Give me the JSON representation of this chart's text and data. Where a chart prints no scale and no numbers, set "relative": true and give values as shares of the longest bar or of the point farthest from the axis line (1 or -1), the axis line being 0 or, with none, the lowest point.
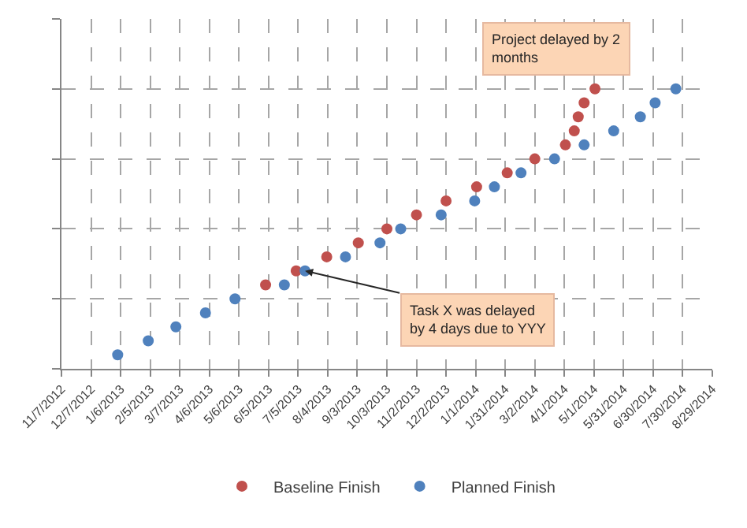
{
  "chart_data": {
    "type": "scatter",
    "relative": true,
    "tick_labels": "x",
    "grid": true,
    "legend": "bottom",
    "marker": "circle",
    "xlim": [
      "2012-11-07",
      "2014-08-29"
    ],
    "xticks": [
      {
        "value": "2012-11-07",
        "label": "11/7/2012"
      },
      {
        "value": "2012-12-07",
        "label": "12/7/2012"
      },
      {
        "value": "2013-01-06",
        "label": "1/6/2013"
      },
      {
        "value": "2013-02-05",
        "label": "2/5/2013"
      },
      {
        "value": "2013-03-07",
        "label": "3/7/2013"
      },
      {
        "value": "2013-04-06",
        "label": "4/6/2013"
      },
      {
        "value": "2013-05-06",
        "label": "5/6/2013"
      },
      {
        "value": "2013-06-05",
        "label": "6/5/2013"
      },
      {
        "value": "2013-07-05",
        "label": "7/5/2013"
      },
      {
        "value": "2013-08-04",
        "label": "8/4/2013"
      },
      {
        "value": "2013-09-03",
        "label": "9/3/2013"
      },
      {
        "value": "2013-10-03",
        "label": "10/3/2013"
      },
      {
        "value": "2013-11-02",
        "label": "11/2/2013"
      },
      {
        "value": "2013-12-02",
        "label": "12/2/2013"
      },
      {
        "value": "2014-01-01",
        "label": "1/1/2014"
      },
      {
        "value": "2014-01-31",
        "label": "1/31/2014"
      },
      {
        "value": "2014-03-02",
        "label": "3/2/2014"
      },
      {
        "value": "2014-04-01",
        "label": "4/1/2014"
      },
      {
        "value": "2014-05-01",
        "label": "5/1/2014"
      },
      {
        "value": "2014-05-31",
        "label": "5/31/2014"
      },
      {
        "value": "2014-06-30",
        "label": "6/30/2014"
      },
      {
        "value": "2014-07-30",
        "label": "7/30/2014"
      },
      {
        "value": "2014-08-29",
        "label": "8/29/2014"
      }
    ],
    "series": [
      {
        "name": "Baseline Finish",
        "color": "#c0504d",
        "x": [
          "2013-06-02",
          "2013-07-03",
          "2013-08-03",
          "2013-09-04",
          "2013-10-03",
          "2013-11-02",
          "2013-12-02",
          "2014-01-02",
          "2014-02-02",
          "2014-03-02",
          "2014-04-02",
          "2014-04-11",
          "2014-04-15",
          "2014-04-21",
          "2014-05-02"
        ],
        "values": [
          0.3,
          0.35,
          0.4,
          0.45,
          0.5,
          0.55,
          0.6,
          0.65,
          0.7,
          0.75,
          0.8,
          0.85,
          0.9,
          0.95,
          1.0
        ]
      },
      {
        "name": "Planned Finish",
        "color": "#4f81bd",
        "x": [
          "2013-01-03",
          "2013-02-03",
          "2013-03-03",
          "2013-04-02",
          "2013-05-02",
          "2013-06-21",
          "2013-07-12",
          "2013-08-22",
          "2013-09-26",
          "2013-10-17",
          "2013-11-27",
          "2013-12-31",
          "2014-01-20",
          "2014-02-16",
          "2014-03-22",
          "2014-04-21",
          "2014-05-21",
          "2014-06-17",
          "2014-07-02",
          "2014-07-23"
        ],
        "values": [
          0.05,
          0.1,
          0.15,
          0.2,
          0.25,
          0.3,
          0.35,
          0.4,
          0.45,
          0.5,
          0.55,
          0.6,
          0.65,
          0.7,
          0.75,
          0.8,
          0.85,
          0.9,
          0.95,
          1.0
        ]
      }
    ],
    "annotations": [
      {
        "text": "Task X was delayed by 4 days due to YYY",
        "x": "2013-07-12",
        "y": 0.35
      },
      "Project delayed by 2 months"
    ]
  }
}
